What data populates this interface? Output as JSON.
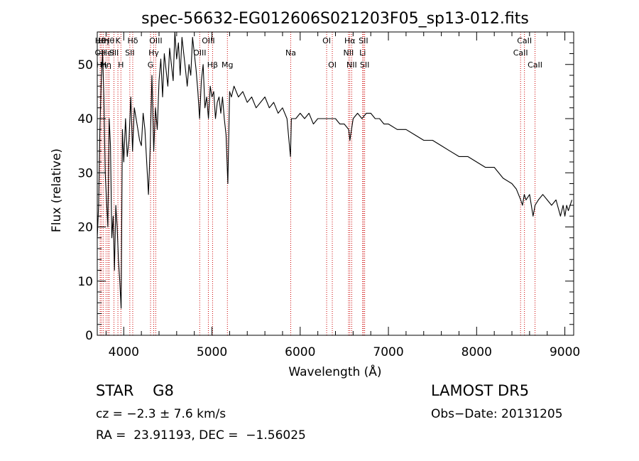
{
  "chart_data": {
    "type": "line",
    "title": "spec-56632-EG012606S021203F05_sp13-012.fits",
    "xlabel": "Wavelength (Å)",
    "ylabel": "Flux (relative)",
    "xlim": [
      3700,
      9100
    ],
    "ylim": [
      0,
      56
    ],
    "xticks": [
      4000,
      5000,
      6000,
      7000,
      8000,
      9000
    ],
    "yticks": [
      0,
      10,
      20,
      30,
      40,
      50
    ],
    "grid": false,
    "line_color": "#000000",
    "marker_color": "#cc0000",
    "series": [
      {
        "x": [
          3700,
          3715,
          3730,
          3745,
          3760,
          3775,
          3790,
          3805,
          3820,
          3835,
          3850,
          3865,
          3880,
          3895,
          3910,
          3925,
          3940,
          3955,
          3970,
          3985,
          4000,
          4020,
          4040,
          4060,
          4080,
          4100,
          4120,
          4140,
          4160,
          4180,
          4200,
          4220,
          4240,
          4260,
          4280,
          4300,
          4320,
          4340,
          4360,
          4380,
          4400,
          4420,
          4440,
          4460,
          4480,
          4500,
          4520,
          4540,
          4560,
          4580,
          4600,
          4620,
          4640,
          4660,
          4680,
          4700,
          4720,
          4740,
          4760,
          4780,
          4800,
          4820,
          4840,
          4860,
          4880,
          4900,
          4920,
          4940,
          4960,
          4980,
          5000,
          5020,
          5040,
          5060,
          5080,
          5100,
          5120,
          5140,
          5160,
          5180,
          5200,
          5220,
          5250,
          5300,
          5350,
          5400,
          5450,
          5500,
          5550,
          5600,
          5650,
          5700,
          5750,
          5800,
          5850,
          5890,
          5900,
          5950,
          6000,
          6050,
          6100,
          6150,
          6200,
          6250,
          6300,
          6350,
          6400,
          6450,
          6500,
          6550,
          6563,
          6600,
          6650,
          6700,
          6750,
          6800,
          6850,
          6900,
          6950,
          7000,
          7100,
          7200,
          7300,
          7400,
          7500,
          7600,
          7700,
          7800,
          7900,
          8000,
          8100,
          8200,
          8300,
          8400,
          8450,
          8500,
          8520,
          8540,
          8560,
          8600,
          8640,
          8662,
          8700,
          8750,
          8800,
          8850,
          8900,
          8950,
          8980,
          9000,
          9020,
          9040,
          9060,
          9080
        ],
        "y": [
          18,
          24,
          38,
          47,
          52,
          44,
          30,
          25,
          20,
          40,
          35,
          18,
          22,
          12,
          24,
          20,
          14,
          10,
          5,
          38,
          32,
          40,
          33,
          36,
          44,
          34,
          42,
          40,
          38,
          36,
          35,
          41,
          38,
          32,
          26,
          35,
          48,
          34,
          42,
          38,
          47,
          51,
          44,
          52,
          49,
          46,
          53,
          50,
          47,
          56,
          51,
          54,
          48,
          55,
          52,
          49,
          46,
          50,
          48,
          55,
          52,
          49,
          45,
          40,
          47,
          50,
          42,
          44,
          40,
          46,
          44,
          45,
          40,
          43,
          44,
          41,
          44,
          40,
          37,
          28,
          45,
          44,
          46,
          44,
          45,
          43,
          44,
          42,
          43,
          44,
          42,
          43,
          41,
          42,
          40,
          33,
          40,
          40,
          41,
          40,
          41,
          39,
          40,
          40,
          40,
          40,
          40,
          39,
          39,
          38,
          36,
          40,
          41,
          40,
          41,
          41,
          40,
          40,
          39,
          39,
          38,
          38,
          37,
          36,
          36,
          35,
          34,
          33,
          33,
          32,
          31,
          31,
          29,
          28,
          27,
          25,
          24,
          26,
          25,
          26,
          22,
          24,
          25,
          26,
          25,
          24,
          25,
          22,
          24,
          22,
          24,
          23,
          24,
          25
        ]
      }
    ],
    "lines": [
      {
        "x": 3733,
        "label": "OII",
        "row": 1
      },
      {
        "x": 3734,
        "label": "Hθ",
        "row": 0
      },
      {
        "x": 3750,
        "label": "Hη",
        "row": 2
      },
      {
        "x": 3770,
        "label": "Hη",
        "row": 0
      },
      {
        "x": 3799,
        "label": "Hη",
        "row": 2
      },
      {
        "x": 3820,
        "label": "HeI",
        "row": 1
      },
      {
        "x": 3835,
        "label": "Hθ",
        "row": 0
      },
      {
        "x": 3889,
        "label": "SII",
        "row": 1
      },
      {
        "x": 3934,
        "label": "K",
        "row": 0
      },
      {
        "x": 3968,
        "label": "H",
        "row": 2
      },
      {
        "x": 4069,
        "label": "SII",
        "row": 1
      },
      {
        "x": 4102,
        "label": "Hδ",
        "row": 0
      },
      {
        "x": 4304,
        "label": "G",
        "row": 2
      },
      {
        "x": 4340,
        "label": "Hγ",
        "row": 1
      },
      {
        "x": 4363,
        "label": "OIII",
        "row": 0
      },
      {
        "x": 4861,
        "label": "OIII",
        "row": 1
      },
      {
        "x": 4959,
        "label": "OIII",
        "row": 0
      },
      {
        "x": 5007,
        "label": "Hβ",
        "row": 2
      },
      {
        "x": 5175,
        "label": "Mg",
        "row": 2
      },
      {
        "x": 5893,
        "label": "Na",
        "row": 1
      },
      {
        "x": 6300,
        "label": "OI",
        "row": 0
      },
      {
        "x": 6364,
        "label": "OI",
        "row": 2
      },
      {
        "x": 6548,
        "label": "NII",
        "row": 1
      },
      {
        "x": 6563,
        "label": "Hα",
        "row": 0
      },
      {
        "x": 6584,
        "label": "NII",
        "row": 2
      },
      {
        "x": 6708,
        "label": "Li",
        "row": 1
      },
      {
        "x": 6717,
        "label": "SII",
        "row": 0
      },
      {
        "x": 6731,
        "label": "SII",
        "row": 2
      },
      {
        "x": 8498,
        "label": "CaII",
        "row": 1
      },
      {
        "x": 8542,
        "label": "CaII",
        "row": 0
      },
      {
        "x": 8662,
        "label": "CaII",
        "row": 2
      }
    ]
  },
  "info": {
    "class_line": "STAR    G8",
    "survey": "LAMOST DR5",
    "cz_line": "cz = −2.3 ± 7.6 km/s",
    "obs_date": "Obs−Date: 20131205",
    "radec_line": "RA =  23.91193, DEC =  −1.56025"
  }
}
